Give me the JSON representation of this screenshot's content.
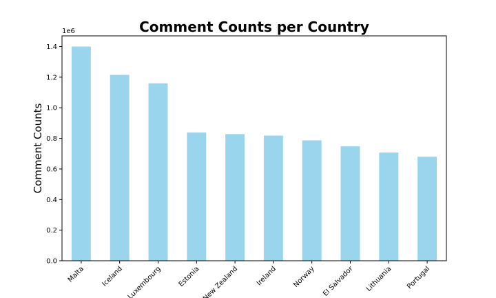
{
  "chart_data": {
    "type": "bar",
    "title": "Comment Counts per Country",
    "xlabel": "",
    "ylabel": "Comment Counts",
    "y_offset_label": "1e6",
    "categories": [
      "Malta",
      "Iceland",
      "Luxembourg",
      "Estonia",
      "New Zealand",
      "Ireland",
      "Norway",
      "El Salvador",
      "Lithuania",
      "Portugal"
    ],
    "values": [
      1400000,
      1215000,
      1160000,
      838000,
      828000,
      818000,
      787000,
      748000,
      707000,
      680000
    ],
    "ylim": [
      0,
      1470000
    ],
    "yticks": [
      0,
      200000,
      400000,
      600000,
      800000,
      1000000,
      1200000,
      1400000
    ],
    "ytick_labels": [
      "0.0",
      "0.2",
      "0.4",
      "0.6",
      "0.8",
      "1.0",
      "1.2",
      "1.4"
    ],
    "bar_color": "#9ad5ee",
    "grid": false,
    "legend": "none"
  }
}
